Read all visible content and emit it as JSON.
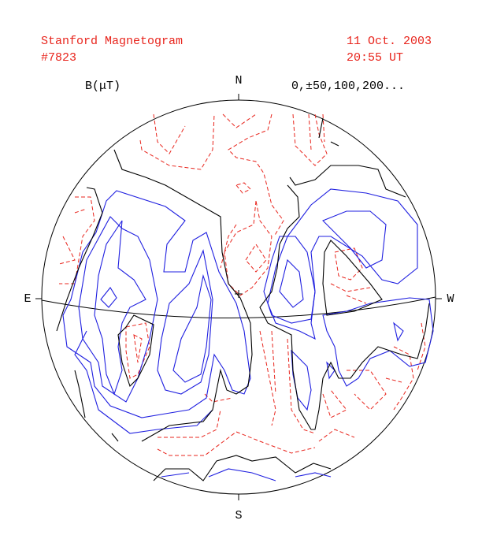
{
  "header": {
    "title": "Stanford Magnetogram",
    "number": "#7823",
    "date": "11 Oct. 2003",
    "time": "20:55 UT"
  },
  "legend": {
    "unit": "B(μT)",
    "levels": "0,±50,100,200..."
  },
  "compass": {
    "north": "N",
    "south": "S",
    "east": "E",
    "west": "W"
  }
}
